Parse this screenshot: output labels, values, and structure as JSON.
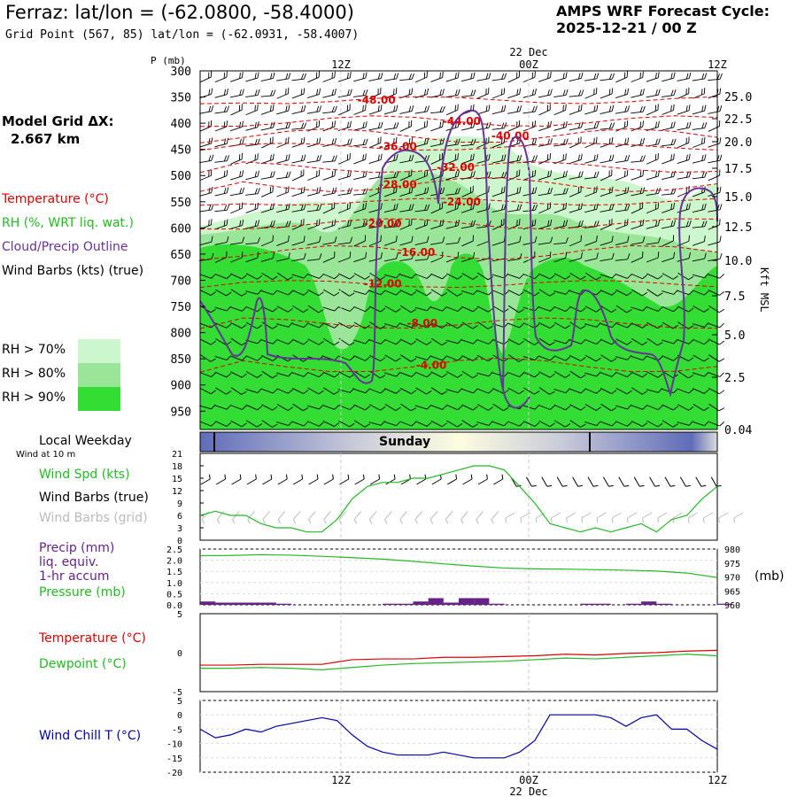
{
  "header": {
    "title": "Ferraz:  lat/lon = (-62.0800, -58.4000)",
    "subtitle": "Grid Point (567, 85) lat/lon = (-62.0931, -58.4007)",
    "cycle_label": "AMPS WRF Forecast Cycle:",
    "cycle_value": "2025-12-21 / 00  Z"
  },
  "model_grid": {
    "label": "Model Grid ΔX:",
    "value": "2.667 km"
  },
  "legend": {
    "temperature": "Temperature (°C)",
    "rh": "RH (%, WRT liq. wat.)",
    "cloud": "Cloud/Precip Outline",
    "wind_barbs": "Wind Barbs (kts) (true)",
    "rh_levels": [
      "RH > 70%",
      "RH > 80%",
      "RH > 90%"
    ]
  },
  "colors": {
    "rh70": "#ccf7cc",
    "rh80": "#99e699",
    "rh90": "#33dd33",
    "temperature": "#dd0000",
    "cloud": "#663399",
    "wind_speed": "#22bb22",
    "pressure": "#22bb22",
    "dewpoint": "#22bb22",
    "precip": "#662288",
    "wind_chill": "#0000aa",
    "day_band_dark": "#5f6cb8",
    "day_band_light": "#fdfde0"
  },
  "time_axis": {
    "top_labels": [
      "12Z",
      "00Z",
      "12Z"
    ],
    "date_label": "22 Dec",
    "bottom_labels": [
      "12Z",
      "00Z",
      "12Z"
    ]
  },
  "panel_labels": {
    "p_axis": "P (mb)",
    "height_axis": "Kft MSL",
    "local_weekday": "Local Weekday",
    "wind_at": "Wind at 10 m",
    "day": "Sunday",
    "wind_spd": "Wind Spd (kts)",
    "wind_barbs_true": "Wind Barbs (true)",
    "wind_barbs_grid": "Wind Barbs (grid)",
    "precip_lines": [
      "Precip (mm)",
      "liq. equiv.",
      "1-hr accum"
    ],
    "pressure": "Pressure (mb)",
    "pressure_unit": "(mb)",
    "temperature": "Temperature (°C)",
    "dewpoint": "Dewpoint (°C)",
    "wind_chill": "Wind Chill T (°C)"
  },
  "chart_data": [
    {
      "type": "heatmap",
      "y_ticks": [
        "300",
        "350",
        "400",
        "450",
        "500",
        "550",
        "600",
        "650",
        "700",
        "750",
        "800",
        "850",
        "900",
        "950"
      ],
      "y_tick_values": [
        300,
        350,
        400,
        450,
        500,
        550,
        600,
        650,
        700,
        750,
        800,
        850,
        900,
        950
      ],
      "ylim": [
        300,
        985
      ],
      "height_ticks": [
        "25.0",
        "22.5",
        "20.0",
        "17.5",
        "15.0",
        "12.5",
        "10.0",
        "7.5",
        "5.0",
        "2.5",
        "0.04"
      ],
      "height_tick_values": [
        25.0,
        22.5,
        20.0,
        17.5,
        15.0,
        12.5,
        10.0,
        7.5,
        5.0,
        2.5,
        0.04
      ],
      "temperature_contours": [
        {
          "label": "-48.00",
          "value": -48,
          "x": 5.8,
          "p": 356
        },
        {
          "label": "-44.00",
          "value": -44,
          "x": 8.6,
          "p": 396
        },
        {
          "label": "-40.00",
          "value": -40,
          "x": 10.2,
          "p": 424
        },
        {
          "label": "-36.00",
          "value": -36,
          "x": 6.5,
          "p": 445
        },
        {
          "label": "-32.00",
          "value": -32,
          "x": 8.4,
          "p": 484
        },
        {
          "label": "-28.00",
          "value": -28,
          "x": 6.5,
          "p": 517
        },
        {
          "label": "-24.00",
          "value": -24,
          "x": 8.6,
          "p": 550
        },
        {
          "label": "-20.00",
          "value": -20,
          "x": 6.0,
          "p": 592
        },
        {
          "label": "-16.00",
          "value": -16,
          "x": 7.1,
          "p": 647
        },
        {
          "label": "-12.00",
          "value": -12,
          "x": 6.0,
          "p": 707
        },
        {
          "label": "-8.00",
          "value": -8,
          "x": 7.3,
          "p": 782
        },
        {
          "label": "-4.00",
          "value": -4,
          "x": 7.6,
          "p": 862
        }
      ],
      "x_range": [
        0,
        17
      ]
    },
    {
      "type": "line",
      "title": "Wind Spd (kts)",
      "y_ticks": [
        "21",
        "18",
        "15",
        "12",
        "9",
        "6",
        "3",
        "0"
      ],
      "ylim": [
        0,
        21
      ],
      "x": [
        0,
        0.5,
        1,
        1.5,
        2,
        2.5,
        3,
        3.5,
        4,
        4.5,
        5,
        5.5,
        6,
        6.5,
        7,
        7.5,
        8,
        8.5,
        9,
        9.5,
        10,
        10.5,
        11,
        11.5,
        12,
        12.5,
        13,
        13.5,
        14,
        14.5,
        15,
        15.5,
        16,
        16.5,
        17
      ],
      "series": [
        {
          "name": "Wind Spd (kts)",
          "values": [
            6,
            7,
            6,
            6,
            4,
            3,
            3,
            2,
            2,
            5,
            10,
            13,
            14,
            14,
            15,
            15,
            16,
            17,
            18,
            18,
            17,
            13,
            9,
            4,
            3,
            2,
            3,
            2,
            3,
            4,
            2,
            5,
            6,
            10,
            13
          ]
        }
      ]
    },
    {
      "type": "line",
      "y_ticks_left": [
        "2.5",
        "2.0",
        "1.5",
        "1.0",
        "0.5",
        "0.0"
      ],
      "y_ticks_right": [
        "980",
        "975",
        "970",
        "965",
        "960"
      ],
      "precip_ylim": [
        0,
        2.5
      ],
      "pressure_ylim": [
        960,
        980
      ],
      "x": [
        0,
        1,
        2,
        3,
        4,
        5,
        6,
        7,
        8,
        9,
        10,
        11,
        12,
        13,
        14,
        15,
        16,
        17
      ],
      "series": [
        {
          "name": "Pressure (mb)",
          "values": [
            977.6,
            977.7,
            978.0,
            977.8,
            977.4,
            976.9,
            976.4,
            975.6,
            974.7,
            973.9,
            973.2,
            972.9,
            972.8,
            972.6,
            972.4,
            972.1,
            971.4,
            969.8
          ]
        }
      ],
      "precip_bars": {
        "x": [
          0,
          0.5,
          1,
          1.5,
          2,
          2.5,
          3,
          3.5,
          4,
          4.5,
          5,
          5.5,
          6,
          6.5,
          7,
          7.5,
          8,
          8.5,
          9,
          9.5,
          10,
          10.5,
          11,
          11.5,
          12,
          12.5,
          13,
          13.5,
          14,
          14.5,
          15,
          15.5,
          16,
          16.5,
          17
        ],
        "values": [
          0.15,
          0.1,
          0.1,
          0.1,
          0.1,
          0.05,
          0,
          0,
          0,
          0,
          0,
          0,
          0.05,
          0.05,
          0.15,
          0.3,
          0.1,
          0.3,
          0.3,
          0.05,
          0,
          0,
          0,
          0,
          0,
          0.05,
          0.05,
          0,
          0.05,
          0.15,
          0.05,
          0,
          0,
          0,
          0.05
        ]
      }
    },
    {
      "type": "line",
      "y_ticks": [
        "5",
        "0",
        "-5"
      ],
      "ylim": [
        -5,
        5
      ],
      "x": [
        0,
        1,
        2,
        3,
        4,
        5,
        6,
        7,
        8,
        9,
        10,
        11,
        12,
        13,
        14,
        15,
        16,
        17
      ],
      "series": [
        {
          "name": "Temperature (°C)",
          "values": [
            -1.6,
            -1.6,
            -1.5,
            -1.5,
            -1.5,
            -0.9,
            -0.8,
            -0.8,
            -0.6,
            -0.6,
            -0.5,
            -0.4,
            -0.2,
            -0.3,
            -0.1,
            0.0,
            0.2,
            0.3
          ]
        },
        {
          "name": "Dewpoint (°C)",
          "values": [
            -2.0,
            -2.0,
            -1.9,
            -2.0,
            -2.2,
            -1.9,
            -1.6,
            -1.4,
            -1.3,
            -1.2,
            -1.1,
            -0.9,
            -0.7,
            -0.8,
            -0.6,
            -0.4,
            -0.2,
            -0.4
          ]
        }
      ]
    },
    {
      "type": "line",
      "y_ticks": [
        "5",
        "0",
        "-5",
        "-10",
        "-15",
        "-20"
      ],
      "ylim": [
        -20,
        5
      ],
      "x": [
        0,
        0.5,
        1,
        1.5,
        2,
        2.5,
        3,
        3.5,
        4,
        4.5,
        5,
        5.5,
        6,
        6.5,
        7,
        7.5,
        8,
        8.5,
        9,
        9.5,
        10,
        10.5,
        11,
        11.5,
        12,
        12.5,
        13,
        13.5,
        14,
        14.5,
        15,
        15.5,
        16,
        16.5,
        17
      ],
      "series": [
        {
          "name": "Wind Chill T (°C)",
          "values": [
            -5,
            -8,
            -7,
            -5,
            -6,
            -4,
            -3,
            -2,
            -1,
            -2,
            -7,
            -11,
            -13,
            -14,
            -14,
            -14,
            -13,
            -14,
            -15,
            -15,
            -15,
            -13,
            -9,
            0,
            0,
            0,
            0,
            -1,
            -4,
            -1,
            0,
            -5,
            -5,
            -9,
            -12
          ]
        }
      ]
    }
  ]
}
